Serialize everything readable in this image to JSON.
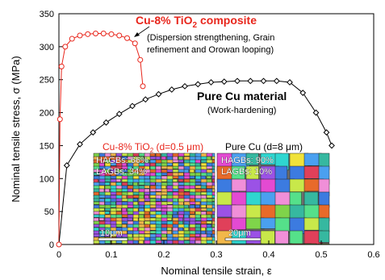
{
  "chart_data": {
    "type": "line",
    "xlabel": "Nominal tensile strain, ε",
    "ylabel": "Nominal tensile stress, σ (MPa)",
    "xlim": [
      0,
      0.6
    ],
    "ylim": [
      0,
      350
    ],
    "x_ticks": [
      "0",
      "0.1",
      "0.2",
      "0.3",
      "0.4",
      "0.5",
      "0.6"
    ],
    "y_ticks": [
      "0",
      "50",
      "100",
      "150",
      "200",
      "250",
      "300",
      "350"
    ],
    "grid": false,
    "series": [
      {
        "name": "Cu-8% TiO2 composite",
        "color": "#e8261c",
        "marker": "circle",
        "points": [
          [
            0,
            0
          ],
          [
            0.002,
            190
          ],
          [
            0.005,
            270
          ],
          [
            0.012,
            300
          ],
          [
            0.025,
            312
          ],
          [
            0.04,
            317
          ],
          [
            0.055,
            319
          ],
          [
            0.07,
            320
          ],
          [
            0.085,
            320
          ],
          [
            0.1,
            319
          ],
          [
            0.115,
            317
          ],
          [
            0.13,
            313
          ],
          [
            0.145,
            305
          ],
          [
            0.155,
            280
          ],
          [
            0.16,
            240
          ]
        ]
      },
      {
        "name": "Pure Cu material",
        "color": "#000000",
        "marker": "diamond",
        "points": [
          [
            0,
            0
          ],
          [
            0.015,
            120
          ],
          [
            0.04,
            152
          ],
          [
            0.065,
            170
          ],
          [
            0.09,
            185
          ],
          [
            0.115,
            198
          ],
          [
            0.14,
            210
          ],
          [
            0.165,
            220
          ],
          [
            0.19,
            228
          ],
          [
            0.215,
            235
          ],
          [
            0.24,
            240
          ],
          [
            0.265,
            243
          ],
          [
            0.29,
            246
          ],
          [
            0.315,
            247
          ],
          [
            0.34,
            248
          ],
          [
            0.365,
            248
          ],
          [
            0.39,
            248
          ],
          [
            0.415,
            248
          ],
          [
            0.44,
            246
          ],
          [
            0.465,
            230
          ],
          [
            0.49,
            200
          ],
          [
            0.51,
            170
          ],
          [
            0.52,
            150
          ]
        ]
      }
    ],
    "annotations": {
      "composite_title_main": "Cu-8% TiO",
      "composite_title_sub": "2",
      "composite_title_tail": " composite",
      "composite_note_line1": "(Dispersion strengthening, Grain",
      "composite_note_line2": "refinement and Orowan looping)",
      "purecu_title": "Pure Cu material",
      "purecu_note": "(Work-hardening)"
    },
    "insets": [
      {
        "title_main": "Cu-8% TiO",
        "title_sub": "2",
        "title_tail": " (d=0.5 μm)",
        "title_color": "#e8261c",
        "hagbs": "HAGBs: 66%",
        "lagbs": "LAGBs: 34%",
        "scale": "10μm"
      },
      {
        "title": "Pure Cu (d=8 μm)",
        "title_color": "#000000",
        "hagbs": "HAGBs: 90%",
        "lagbs": "LAGBs: 10%",
        "scale": "20μm"
      }
    ]
  }
}
